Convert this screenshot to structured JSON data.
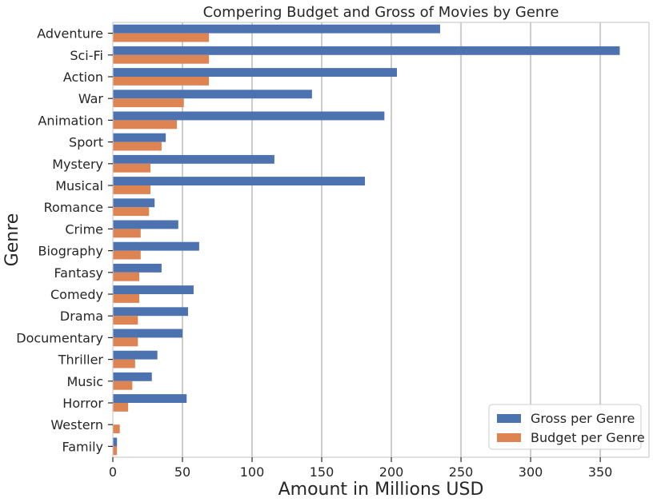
{
  "chart_data": {
    "type": "bar",
    "orientation": "horizontal",
    "title": "Compering Budget and Gross of Movies by Genre",
    "xlabel": "Amount in Millions USD",
    "ylabel": "Genre",
    "xlim": [
      0,
      385
    ],
    "xticks": [
      0,
      50,
      100,
      150,
      200,
      250,
      300,
      350
    ],
    "grid": "vertical",
    "legend_position": "bottom-right",
    "categories": [
      "Adventure",
      "Sci-Fi",
      "Action",
      "War",
      "Animation",
      "Sport",
      "Mystery",
      "Musical",
      "Romance",
      "Crime",
      "Biography",
      "Fantasy",
      "Comedy",
      "Drama",
      "Documentary",
      "Thriller",
      "Music",
      "Horror",
      "Western",
      "Family"
    ],
    "series": [
      {
        "name": "Gross per Genre",
        "color": "#4c72b0",
        "values": [
          235,
          364,
          204,
          143,
          195,
          38,
          116,
          181,
          30,
          47,
          62,
          35,
          58,
          54,
          50,
          32,
          28,
          53,
          0,
          3
        ]
      },
      {
        "name": "Budget per Genre",
        "color": "#dd8452",
        "values": [
          69,
          69,
          69,
          51,
          46,
          35,
          27,
          27,
          26,
          20,
          20,
          19,
          19,
          18,
          18,
          16,
          14,
          11,
          5,
          3
        ]
      }
    ]
  }
}
